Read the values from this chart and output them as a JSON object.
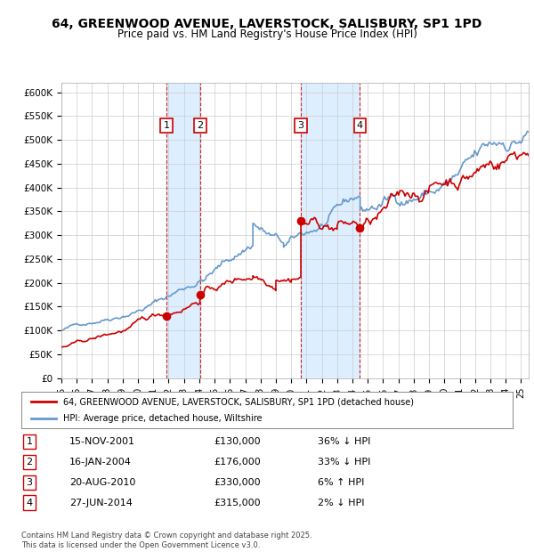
{
  "title": "64, GREENWOOD AVENUE, LAVERSTOCK, SALISBURY, SP1 1PD",
  "subtitle": "Price paid vs. HM Land Registry's House Price Index (HPI)",
  "ylabel_ticks": [
    "£0",
    "£50K",
    "£100K",
    "£150K",
    "£200K",
    "£250K",
    "£300K",
    "£350K",
    "£400K",
    "£450K",
    "£500K",
    "£550K",
    "£600K"
  ],
  "ylim": [
    0,
    620000
  ],
  "xlim_start": 1995.0,
  "xlim_end": 2025.5,
  "transactions": [
    {
      "num": 1,
      "date": "15-NOV-2001",
      "price": 130000,
      "hpi_rel": "36% ↓ HPI",
      "x": 2001.87
    },
    {
      "num": 2,
      "date": "16-JAN-2004",
      "price": 176000,
      "hpi_rel": "33% ↓ HPI",
      "x": 2004.04
    },
    {
      "num": 3,
      "date": "20-AUG-2010",
      "price": 330000,
      "hpi_rel": "6% ↑ HPI",
      "x": 2010.63
    },
    {
      "num": 4,
      "date": "27-JUN-2014",
      "price": 315000,
      "hpi_rel": "2% ↓ HPI",
      "x": 2014.49
    }
  ],
  "legend_property": "64, GREENWOOD AVENUE, LAVERSTOCK, SALISBURY, SP1 1PD (detached house)",
  "legend_hpi": "HPI: Average price, detached house, Wiltshire",
  "footer": "Contains HM Land Registry data © Crown copyright and database right 2025.\nThis data is licensed under the Open Government Licence v3.0.",
  "property_color": "#cc0000",
  "hpi_color": "#6699cc",
  "background_color": "#ffffff",
  "grid_color": "#cccccc",
  "shade_color": "#ddeeff"
}
